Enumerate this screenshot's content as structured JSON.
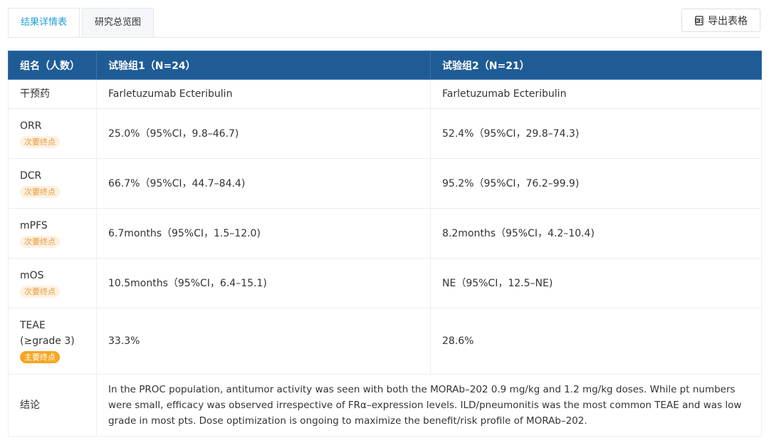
{
  "tabs": [
    {
      "label": "结果详情表",
      "active": true
    },
    {
      "label": "研究总览图",
      "active": false
    }
  ],
  "export_button": {
    "label": "导出表格",
    "icon": "excel-export-icon"
  },
  "table": {
    "headers": [
      "组名（人数）",
      "试验组1（N=24）",
      "试验组2（N=21）"
    ],
    "rows": [
      {
        "label": "干预药",
        "badge": "",
        "values": [
          "Farletuzumab Ecteribulin",
          "Farletuzumab Ecteribulin"
        ]
      },
      {
        "label": "ORR",
        "badge": "次要终点",
        "values": [
          "25.0%（95%CI，9.8–46.7)",
          "52.4%（95%CI，29.8–74.3)"
        ]
      },
      {
        "label": "DCR",
        "badge": "次要终点",
        "values": [
          "66.7%（95%CI，44.7–84.4)",
          "95.2%（95%CI，76.2–99.9)"
        ]
      },
      {
        "label": "mPFS",
        "badge": "次要终点",
        "values": [
          "6.7months（95%CI，1.5–12.0)",
          "8.2months（95%CI，4.2–10.4)"
        ]
      },
      {
        "label": "mOS",
        "badge": "次要终点",
        "values": [
          "10.5months（95%CI，6.4–15.1)",
          "NE（95%CI，12.5–NE)"
        ]
      },
      {
        "label": "TEAE (≥grade 3)",
        "badge": "主要终点",
        "values": [
          "33.3%",
          "28.6%"
        ]
      }
    ],
    "conclusion": {
      "label": "结论",
      "text": "In the PROC population, antitumor activity was seen with both the MORAb–202 0.9 mg/kg and 1.2 mg/kg doses. While pt numbers were small, efficacy was observed irrespective of FRα–expression levels. ILD/pneumonitis was the most common TEAE and was low grade in most pts. Dose optimization is ongoing to maximize the benefit/risk profile of MORAb–202."
    }
  },
  "colors": {
    "header_bg": "#1f5c96",
    "active_tab": "#1fa0d8",
    "secondary_badge_bg": "#fdf1e1",
    "secondary_badge_text": "#e89a3c",
    "primary_badge_bg": "#f5a623"
  }
}
